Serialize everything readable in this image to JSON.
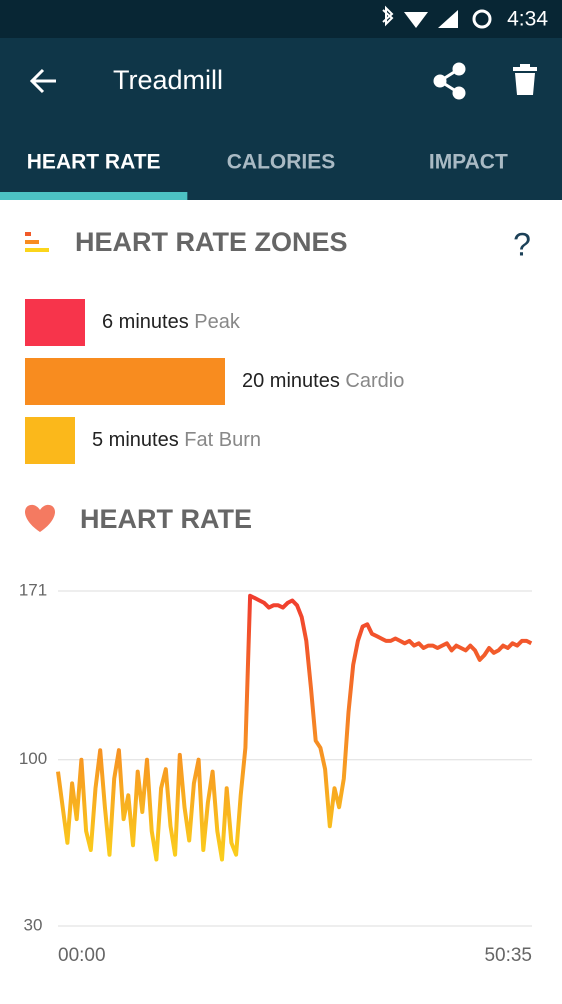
{
  "status_bar": {
    "time": "4:34"
  },
  "app_bar": {
    "title": "Treadmill"
  },
  "tabs": {
    "items": [
      "HEART RATE",
      "CALORIES",
      "IMPACT"
    ],
    "selected": 0
  },
  "zones": {
    "title": "HEART RATE ZONES",
    "help": "?",
    "values": [
      6,
      20,
      5
    ],
    "value_labels": [
      "6 minutes",
      "20 minutes",
      "5 minutes"
    ],
    "names": [
      "Peak",
      "Cardio",
      "Fat Burn"
    ],
    "colors": [
      "#f7344b",
      "#f88c1f",
      "#fbb81b"
    ]
  },
  "chart_data": {
    "type": "line",
    "title": "HEART RATE",
    "x": [
      0,
      0.5,
      1,
      1.5,
      2,
      2.5,
      3,
      3.5,
      4,
      4.5,
      5,
      5.5,
      6,
      6.5,
      7,
      7.5,
      8,
      8.5,
      9,
      9.5,
      10,
      10.5,
      11,
      11.5,
      12,
      12.5,
      13,
      13.5,
      14,
      14.5,
      15,
      15.5,
      16,
      16.5,
      17,
      17.5,
      18,
      18.5,
      19,
      19.5,
      20,
      20.5,
      21,
      21.5,
      22,
      22.5,
      23,
      23.5,
      24,
      24.5,
      25,
      25.5,
      26,
      26.5,
      27,
      27.5,
      28,
      28.5,
      29,
      29.5,
      30,
      30.5,
      31,
      31.5,
      32,
      32.5,
      33,
      33.5,
      34,
      34.5,
      35,
      35.5,
      36,
      36.5,
      37,
      37.5,
      38,
      38.5,
      39,
      39.5,
      40,
      40.5,
      41,
      41.5,
      42,
      42.5,
      43,
      43.5,
      44,
      44.5,
      45,
      45.5,
      46,
      46.5,
      47,
      47.5,
      48,
      48.5,
      49,
      49.5,
      50,
      50.5
    ],
    "series": [
      {
        "values": [
          95,
          80,
          65,
          90,
          75,
          100,
          70,
          62,
          88,
          104,
          80,
          60,
          92,
          104,
          75,
          85,
          64,
          95,
          78,
          100,
          70,
          58,
          88,
          96,
          72,
          60,
          102,
          80,
          66,
          90,
          100,
          62,
          82,
          95,
          70,
          58,
          88,
          65,
          60,
          85,
          105,
          169,
          168,
          167,
          166,
          164,
          165,
          165,
          164,
          166,
          167,
          165,
          160,
          150,
          130,
          108,
          105,
          96,
          72,
          88,
          80,
          92,
          120,
          140,
          150,
          156,
          157,
          153,
          152,
          151,
          150,
          150,
          151,
          150,
          149,
          150,
          148,
          149,
          147,
          148,
          148,
          147,
          148,
          149,
          146,
          148,
          147,
          146,
          148,
          146,
          142,
          144,
          147,
          145,
          146,
          148,
          147,
          149,
          148,
          150,
          150,
          149
        ]
      }
    ],
    "colors": [
      "#fbd51b",
      "#f0392f"
    ],
    "xlim": [
      0,
      50.58
    ],
    "ylim": [
      30,
      171
    ],
    "xticks": [
      {
        "value": 0,
        "label": "00:00"
      },
      {
        "value": 50.58,
        "label": "50:35"
      }
    ],
    "yticks": [
      30,
      100,
      171
    ],
    "grid": true
  }
}
